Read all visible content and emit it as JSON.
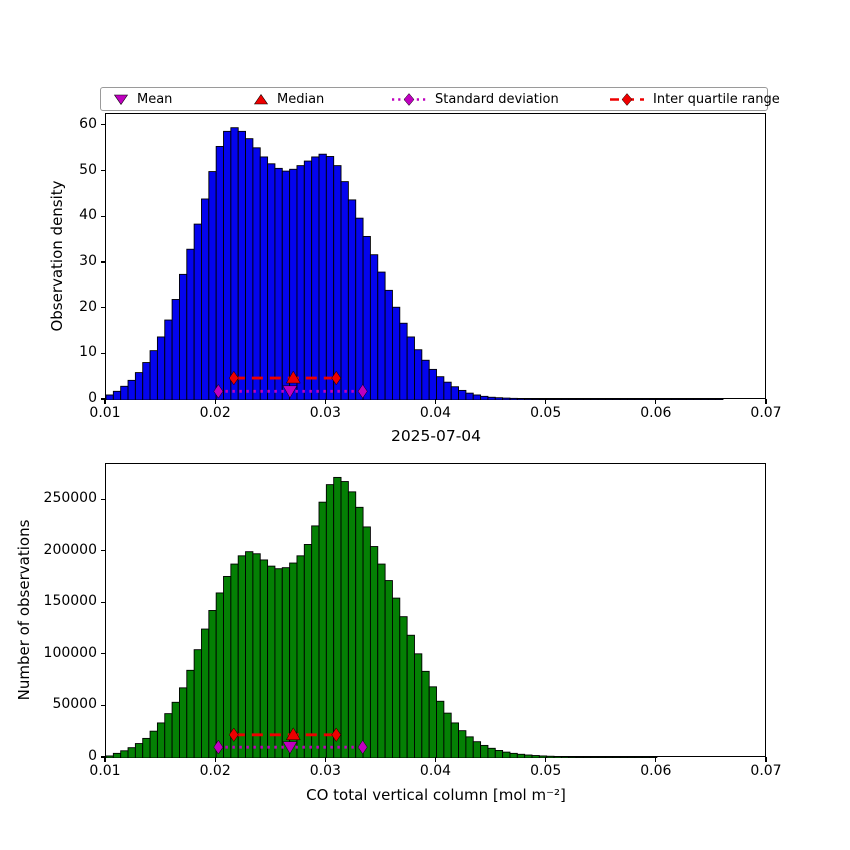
{
  "page": {
    "background": "#ffffff"
  },
  "legend": {
    "border_color": "#9a9a9a",
    "items": [
      {
        "label": "Mean",
        "marker": "triangle-down",
        "color": "#bf00bf"
      },
      {
        "label": "Median",
        "marker": "triangle-up",
        "color": "#ee0000"
      },
      {
        "label": "Standard deviation",
        "marker": "diamond-dotted-line",
        "color": "#bf00bf"
      },
      {
        "label": "Inter quartile range",
        "marker": "diamond-dashed-line",
        "color": "#ee0000"
      }
    ]
  },
  "chart_data": [
    {
      "type": "bar",
      "subtype": "histogram",
      "title": "2025-07-04",
      "ylabel": "Observation density",
      "xlabel": "2025-07-04",
      "xlim": [
        0.01,
        0.07
      ],
      "ylim": [
        0,
        62.6
      ],
      "xticks": [
        0.01,
        0.02,
        0.03,
        0.04,
        0.05,
        0.06,
        0.07
      ],
      "xtick_labels": [
        "0.01",
        "0.02",
        "0.03",
        "0.04",
        "0.05",
        "0.06",
        "0.07"
      ],
      "yticks": [
        0,
        10,
        20,
        30,
        40,
        50,
        60
      ],
      "ytick_labels": [
        "0",
        "10",
        "20",
        "30",
        "40",
        "50",
        "60"
      ],
      "grid": false,
      "bin_start": 0.01,
      "bin_width": 0.0006667,
      "bar_color": "#0404ee",
      "edge_color": "#000000",
      "values": [
        1.1,
        1.9,
        3.0,
        4.3,
        6.0,
        8.2,
        10.8,
        13.8,
        17.5,
        22.0,
        27.5,
        33.0,
        38.5,
        44.0,
        50.0,
        55.5,
        58.8,
        59.6,
        58.8,
        57.2,
        55.2,
        53.2,
        51.7,
        50.7,
        50.1,
        50.5,
        51.3,
        52.3,
        53.2,
        53.8,
        53.3,
        51.3,
        47.8,
        43.8,
        39.8,
        35.8,
        31.8,
        28.0,
        24.0,
        20.3,
        16.8,
        13.8,
        11.0,
        8.7,
        6.7,
        5.1,
        3.9,
        2.9,
        2.1,
        1.5,
        1.1,
        0.8,
        0.6,
        0.5,
        0.42,
        0.36,
        0.3,
        0.26,
        0.23,
        0.2,
        0.18,
        0.16,
        0.14,
        0.12,
        0.11,
        0.1,
        0.09,
        0.08,
        0.07,
        0.06,
        0.06,
        0.05,
        0.05,
        0.04,
        0.04,
        0.03,
        0.03,
        0.03,
        0.02,
        0.02,
        0.02,
        0.02,
        0.01,
        0.01,
        0,
        0,
        0,
        0,
        0,
        0
      ],
      "stats": {
        "mean": 0.0267,
        "median": 0.027,
        "std_low": 0.0202,
        "std_high": 0.0333,
        "iqr_low": 0.0216,
        "iqr_high": 0.0309,
        "std_line_y": 1.9,
        "iqr_line_y": 4.8,
        "mean_color": "#bf00bf",
        "median_color": "#ee0000"
      }
    },
    {
      "type": "bar",
      "subtype": "histogram",
      "title": "",
      "ylabel": "Number of observations",
      "xlabel": "CO total vertical column [mol m⁻²]",
      "xlim": [
        0.01,
        0.07
      ],
      "ylim": [
        0,
        285000
      ],
      "xticks": [
        0.01,
        0.02,
        0.03,
        0.04,
        0.05,
        0.06,
        0.07
      ],
      "xtick_labels": [
        "0.01",
        "0.02",
        "0.03",
        "0.04",
        "0.05",
        "0.06",
        "0.07"
      ],
      "yticks": [
        0,
        50000,
        100000,
        150000,
        200000,
        250000
      ],
      "ytick_labels": [
        "0",
        "50000",
        "100000",
        "150000",
        "200000",
        "250000"
      ],
      "grid": false,
      "bin_start": 0.01,
      "bin_width": 0.0006667,
      "bar_color": "#048004",
      "edge_color": "#000000",
      "values": [
        2000,
        4500,
        7000,
        10000,
        14000,
        19000,
        26000,
        34000,
        43000,
        54000,
        68000,
        85000,
        105000,
        125000,
        143000,
        160000,
        176000,
        188000,
        196000,
        200000,
        198000,
        192000,
        186000,
        183500,
        184500,
        189000,
        196000,
        207000,
        225000,
        248000,
        265000,
        272000,
        268000,
        258000,
        243000,
        224000,
        205000,
        188000,
        172000,
        155000,
        137000,
        119000,
        101000,
        84000,
        69000,
        55000,
        43500,
        34000,
        26500,
        20500,
        15800,
        12200,
        9400,
        7300,
        5700,
        4500,
        3600,
        2900,
        2400,
        2000,
        1700,
        1450,
        1250,
        1080,
        940,
        820,
        720,
        630,
        550,
        480,
        420,
        370,
        320,
        280,
        245,
        0,
        0,
        0,
        0,
        0,
        0,
        0,
        0,
        0,
        0,
        0,
        0,
        0,
        0,
        0
      ],
      "stats": {
        "mean": 0.0267,
        "median": 0.027,
        "std_low": 0.0202,
        "std_high": 0.0333,
        "iqr_low": 0.0216,
        "iqr_high": 0.0309,
        "std_line_y": 10500,
        "iqr_line_y": 22500,
        "mean_color": "#bf00bf",
        "median_color": "#ee0000"
      }
    }
  ]
}
